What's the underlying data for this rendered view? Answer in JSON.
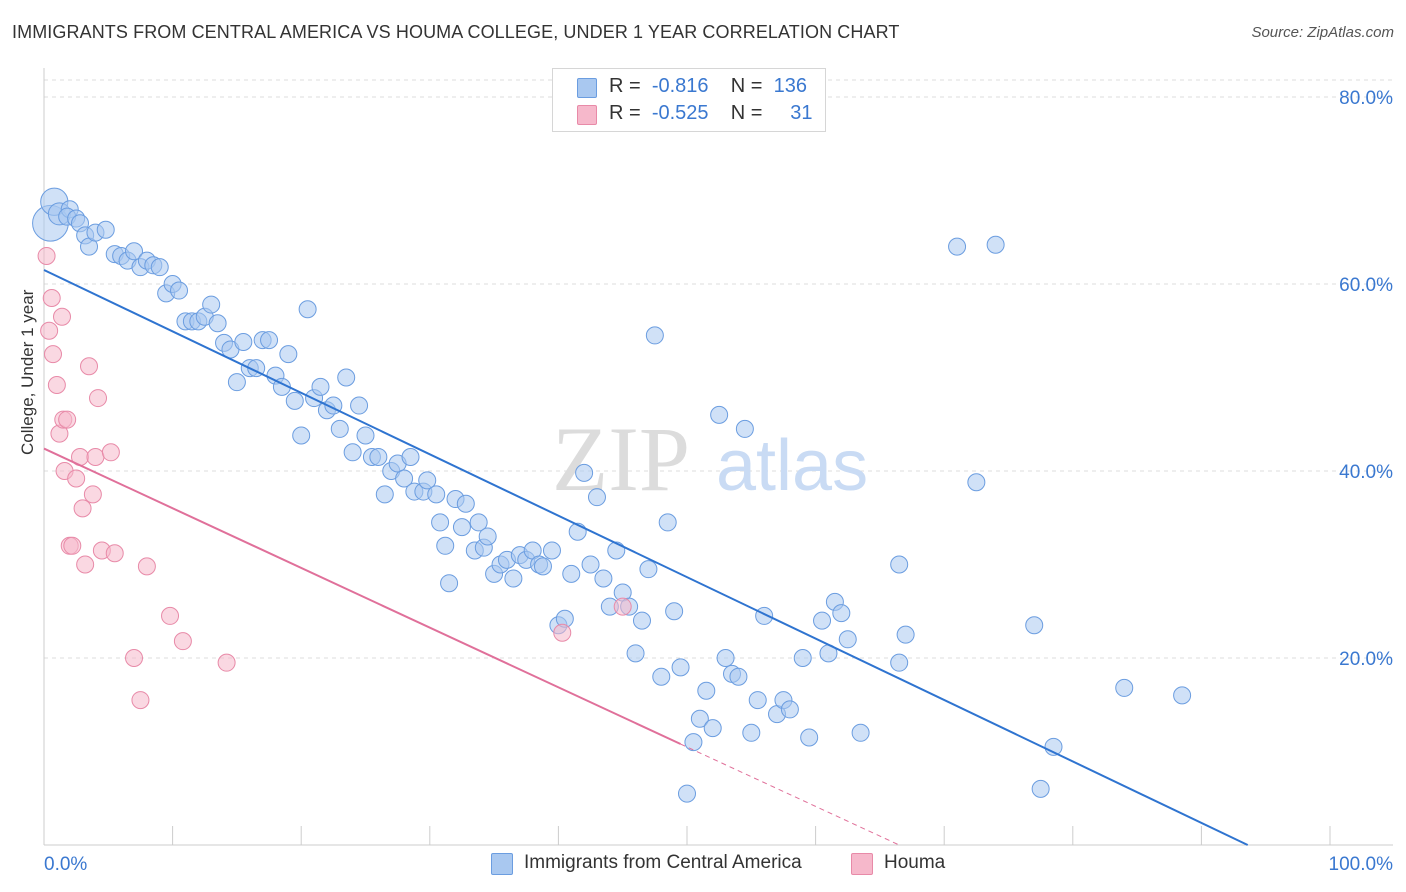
{
  "header": {
    "title": "IMMIGRANTS FROM CENTRAL AMERICA VS HOUMA COLLEGE, UNDER 1 YEAR CORRELATION CHART",
    "source": "Source: ZipAtlas.com"
  },
  "watermark": {
    "zip": "ZIP",
    "atlas": "atlas"
  },
  "legend_top": {
    "rows": [
      {
        "r_label": "R =",
        "r_value": "-0.816",
        "n_label": "N =",
        "n_value": "136"
      },
      {
        "r_label": "R =",
        "r_value": "-0.525",
        "n_label": "N =",
        "n_value": "31"
      }
    ]
  },
  "legend_bottom": {
    "items": [
      {
        "label": "Immigrants from Central America"
      },
      {
        "label": "Houma"
      }
    ]
  },
  "colors": {
    "blue_fill": "#a9c8f0",
    "blue_stroke": "#6b9de0",
    "blue_line": "#2f74d0",
    "pink_fill": "#f6b8cb",
    "pink_stroke": "#e88aa8",
    "pink_line": "#e0709a",
    "tick_label": "#3a78d0",
    "grid": "#dddddd"
  },
  "chart_data": {
    "type": "scatter",
    "title": "IMMIGRANTS FROM CENTRAL AMERICA VS HOUMA COLLEGE, UNDER 1 YEAR CORRELATION CHART",
    "xlabel": "",
    "ylabel": "College, Under 1 year",
    "xlim": [
      0,
      100
    ],
    "ylim": [
      0,
      80
    ],
    "x_tick_labels": [
      "0.0%",
      "100.0%"
    ],
    "y_ticks": [
      20,
      40,
      60,
      80
    ],
    "y_tick_labels": [
      "20.0%",
      "40.0%",
      "60.0%",
      "80.0%"
    ],
    "grid": "horizontal dashed",
    "legend_position": "bottom",
    "series": [
      {
        "name": "Immigrants from Central America",
        "color": "blue",
        "stats": {
          "R": -0.816,
          "N": 136
        },
        "trendline": {
          "x": [
            0,
            93.6
          ],
          "y": [
            61.5,
            0
          ]
        },
        "points": [
          [
            0.5,
            66.5,
            3
          ],
          [
            0.8,
            68.8,
            2
          ],
          [
            1.2,
            67.5,
            1.5
          ],
          [
            2.0,
            68.0,
            1
          ],
          [
            1.8,
            67.2,
            1
          ],
          [
            2.5,
            67.0,
            1
          ],
          [
            2.8,
            66.5,
            1
          ],
          [
            3.2,
            65.2,
            1
          ],
          [
            3.5,
            64.0,
            1
          ],
          [
            4.0,
            65.5,
            1
          ],
          [
            4.8,
            65.8,
            1
          ],
          [
            5.5,
            63.2,
            1
          ],
          [
            6.0,
            63.0,
            1
          ],
          [
            6.5,
            62.5,
            1
          ],
          [
            7.0,
            63.5,
            1
          ],
          [
            7.5,
            61.8,
            1
          ],
          [
            8.0,
            62.5,
            1
          ],
          [
            8.5,
            62.0,
            1
          ],
          [
            9.0,
            61.8,
            1
          ],
          [
            9.5,
            59.0,
            1
          ],
          [
            10.0,
            60.0,
            1
          ],
          [
            10.5,
            59.3,
            1
          ],
          [
            11.0,
            56.0,
            1
          ],
          [
            11.5,
            56.0,
            1
          ],
          [
            12.0,
            56.0,
            1
          ],
          [
            12.5,
            56.5,
            1
          ],
          [
            13.0,
            57.8,
            1
          ],
          [
            13.5,
            55.8,
            1
          ],
          [
            14.0,
            53.7,
            1
          ],
          [
            14.5,
            53.0,
            1
          ],
          [
            15.0,
            49.5,
            1
          ],
          [
            15.5,
            53.8,
            1
          ],
          [
            16.0,
            51.0,
            1
          ],
          [
            16.5,
            51.0,
            1
          ],
          [
            17.0,
            54.0,
            1
          ],
          [
            17.5,
            54.0,
            1
          ],
          [
            18.0,
            50.2,
            1
          ],
          [
            18.5,
            49.0,
            1
          ],
          [
            19.0,
            52.5,
            1
          ],
          [
            19.5,
            47.5,
            1
          ],
          [
            20.0,
            43.8,
            1
          ],
          [
            20.5,
            57.3,
            1
          ],
          [
            21.0,
            47.8,
            1
          ],
          [
            21.5,
            49.0,
            1
          ],
          [
            22.0,
            46.5,
            1
          ],
          [
            22.5,
            47.0,
            1
          ],
          [
            23.0,
            44.5,
            1
          ],
          [
            23.5,
            50.0,
            1
          ],
          [
            24.0,
            42.0,
            1
          ],
          [
            24.5,
            47.0,
            1
          ],
          [
            25.0,
            43.8,
            1
          ],
          [
            25.5,
            41.5,
            1
          ],
          [
            26.0,
            41.5,
            1
          ],
          [
            26.5,
            37.5,
            1
          ],
          [
            27.0,
            40.0,
            1
          ],
          [
            27.5,
            40.8,
            1
          ],
          [
            28.0,
            39.2,
            1
          ],
          [
            28.5,
            41.5,
            1
          ],
          [
            28.8,
            37.8,
            1
          ],
          [
            29.5,
            37.8,
            1
          ],
          [
            29.8,
            39.0,
            1
          ],
          [
            30.5,
            37.5,
            1
          ],
          [
            30.8,
            34.5,
            1
          ],
          [
            31.2,
            32.0,
            1
          ],
          [
            31.5,
            28.0,
            1
          ],
          [
            32.0,
            37.0,
            1
          ],
          [
            32.5,
            34.0,
            1
          ],
          [
            32.8,
            36.5,
            1
          ],
          [
            33.5,
            31.5,
            1
          ],
          [
            33.8,
            34.5,
            1
          ],
          [
            34.2,
            31.8,
            1
          ],
          [
            34.5,
            33.0,
            1
          ],
          [
            35.0,
            29.0,
            1
          ],
          [
            35.5,
            30.0,
            1
          ],
          [
            36.0,
            30.5,
            1
          ],
          [
            36.5,
            28.5,
            1
          ],
          [
            37.0,
            31.0,
            1
          ],
          [
            37.5,
            30.5,
            1
          ],
          [
            38.0,
            31.5,
            1
          ],
          [
            38.5,
            30.0,
            1
          ],
          [
            38.8,
            29.8,
            1
          ],
          [
            39.5,
            31.5,
            1
          ],
          [
            40.0,
            23.5,
            1
          ],
          [
            40.5,
            24.2,
            1
          ],
          [
            41.0,
            29.0,
            1
          ],
          [
            41.5,
            33.5,
            1
          ],
          [
            42.0,
            39.8,
            1
          ],
          [
            42.5,
            30.0,
            1
          ],
          [
            43.0,
            37.2,
            1
          ],
          [
            43.5,
            28.5,
            1
          ],
          [
            44.0,
            25.5,
            1
          ],
          [
            44.5,
            31.5,
            1
          ],
          [
            45.0,
            27.0,
            1
          ],
          [
            45.5,
            25.5,
            1
          ],
          [
            46.0,
            20.5,
            1
          ],
          [
            46.5,
            24.0,
            1
          ],
          [
            47.0,
            29.5,
            1
          ],
          [
            47.5,
            54.5,
            1
          ],
          [
            48.0,
            18.0,
            1
          ],
          [
            48.5,
            34.5,
            1
          ],
          [
            49.0,
            25.0,
            1
          ],
          [
            49.5,
            19.0,
            1
          ],
          [
            50.0,
            5.5,
            1
          ],
          [
            50.5,
            11.0,
            1
          ],
          [
            51.0,
            13.5,
            1
          ],
          [
            51.5,
            16.5,
            1
          ],
          [
            52.0,
            12.5,
            1
          ],
          [
            52.5,
            46.0,
            1
          ],
          [
            53.0,
            20.0,
            1
          ],
          [
            53.5,
            18.3,
            1
          ],
          [
            54.0,
            18.0,
            1
          ],
          [
            54.5,
            44.5,
            1
          ],
          [
            55.0,
            12.0,
            1
          ],
          [
            55.5,
            15.5,
            1
          ],
          [
            56.0,
            24.5,
            1
          ],
          [
            57.0,
            14.0,
            1
          ],
          [
            57.5,
            15.5,
            1
          ],
          [
            58.0,
            14.5,
            1
          ],
          [
            59.0,
            20.0,
            1
          ],
          [
            59.5,
            11.5,
            1
          ],
          [
            60.5,
            24.0,
            1
          ],
          [
            61.0,
            20.5,
            1
          ],
          [
            61.5,
            26.0,
            1
          ],
          [
            62.0,
            24.8,
            1
          ],
          [
            62.5,
            22.0,
            1
          ],
          [
            63.5,
            12.0,
            1
          ],
          [
            66.5,
            30.0,
            1
          ],
          [
            66.5,
            19.5,
            1
          ],
          [
            67.0,
            22.5,
            1
          ],
          [
            71.0,
            64.0,
            1
          ],
          [
            74.0,
            64.2,
            1
          ],
          [
            72.5,
            38.8,
            1
          ],
          [
            77.0,
            23.5,
            1
          ],
          [
            77.5,
            6.0,
            1
          ],
          [
            78.5,
            10.5,
            1
          ],
          [
            84.0,
            16.8,
            1
          ],
          [
            88.5,
            16.0,
            1
          ]
        ]
      },
      {
        "name": "Houma",
        "color": "pink",
        "stats": {
          "R": -0.525,
          "N": 31
        },
        "trendline": {
          "x": [
            0,
            49.5
          ],
          "y": [
            42.4,
            10.8
          ]
        },
        "trendline_extension": {
          "x": [
            49.5,
            66.5
          ],
          "y": [
            10.8,
            0
          ]
        },
        "points": [
          [
            0.2,
            63.0,
            1
          ],
          [
            0.4,
            55.0,
            1
          ],
          [
            0.6,
            58.5,
            1
          ],
          [
            0.7,
            52.5,
            1
          ],
          [
            1.0,
            49.2,
            1
          ],
          [
            1.2,
            44.0,
            1
          ],
          [
            1.4,
            56.5,
            1
          ],
          [
            1.5,
            45.5,
            1
          ],
          [
            1.6,
            40.0,
            1
          ],
          [
            1.8,
            45.5,
            1
          ],
          [
            2.0,
            32.0,
            1
          ],
          [
            2.2,
            32.0,
            1
          ],
          [
            2.5,
            39.2,
            1
          ],
          [
            2.8,
            41.5,
            1
          ],
          [
            3.0,
            36.0,
            1
          ],
          [
            3.2,
            30.0,
            1
          ],
          [
            3.5,
            51.2,
            1
          ],
          [
            3.8,
            37.5,
            1
          ],
          [
            4.0,
            41.5,
            1
          ],
          [
            4.2,
            47.8,
            1
          ],
          [
            4.5,
            31.5,
            1
          ],
          [
            5.2,
            42.0,
            1
          ],
          [
            5.5,
            31.2,
            1
          ],
          [
            7.0,
            20.0,
            1
          ],
          [
            7.5,
            15.5,
            1
          ],
          [
            8.0,
            29.8,
            1
          ],
          [
            9.8,
            24.5,
            1
          ],
          [
            10.8,
            21.8,
            1
          ],
          [
            14.2,
            19.5,
            1
          ],
          [
            40.3,
            22.7,
            1
          ],
          [
            45.0,
            25.5,
            1
          ]
        ]
      }
    ]
  }
}
